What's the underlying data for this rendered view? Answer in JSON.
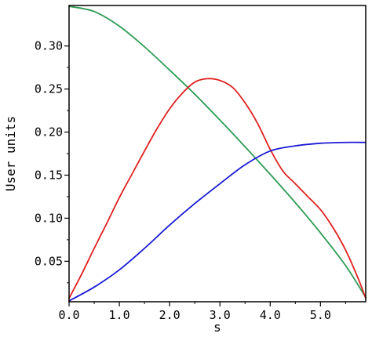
{
  "chart_data": {
    "type": "line",
    "xlabel": "s",
    "ylabel": "User units",
    "xlim": [
      0,
      5.9
    ],
    "ylim": [
      0.003,
      0.347
    ],
    "x_ticks": [
      0.0,
      1.0,
      2.0,
      3.0,
      4.0,
      5.0
    ],
    "x_tick_labels": [
      "0.0",
      "1.0",
      "2.0",
      "3.0",
      "4.0",
      "5.0"
    ],
    "y_ticks": [
      0.05,
      0.1,
      0.15,
      0.2,
      0.25,
      0.3
    ],
    "y_tick_labels": [
      "0.05",
      "0.10",
      "0.15",
      "0.20",
      "0.25",
      "0.30"
    ],
    "grid": false,
    "legend": "none",
    "series": [
      {
        "color": "#2e9b55",
        "x": [
          0.0,
          0.5,
          1.0,
          1.5,
          2.0,
          2.5,
          3.0,
          3.5,
          4.0,
          4.5,
          5.0,
          5.5,
          5.9
        ],
        "y": [
          0.346,
          0.34,
          0.323,
          0.299,
          0.272,
          0.244,
          0.214,
          0.183,
          0.151,
          0.118,
          0.083,
          0.045,
          0.008
        ]
      },
      {
        "color": "#e02020",
        "x": [
          0.0,
          0.25,
          0.5,
          0.75,
          1.0,
          1.25,
          1.5,
          1.75,
          2.0,
          2.25,
          2.5,
          2.75,
          3.0,
          3.25,
          3.5,
          3.75,
          4.0,
          4.25,
          4.5,
          4.75,
          5.0,
          5.25,
          5.5,
          5.75,
          5.9
        ],
        "y": [
          0.007,
          0.035,
          0.065,
          0.094,
          0.124,
          0.151,
          0.178,
          0.204,
          0.227,
          0.245,
          0.258,
          0.262,
          0.26,
          0.252,
          0.234,
          0.21,
          0.18,
          0.155,
          0.14,
          0.125,
          0.11,
          0.089,
          0.063,
          0.03,
          0.007
        ]
      },
      {
        "color": "#1a1ad6",
        "x": [
          0.0,
          0.5,
          1.0,
          1.5,
          2.0,
          2.5,
          3.0,
          3.5,
          4.0,
          4.5,
          5.0,
          5.5,
          5.9
        ],
        "y": [
          0.004,
          0.02,
          0.04,
          0.065,
          0.092,
          0.117,
          0.14,
          0.162,
          0.178,
          0.184,
          0.187,
          0.188,
          0.188
        ]
      }
    ]
  }
}
